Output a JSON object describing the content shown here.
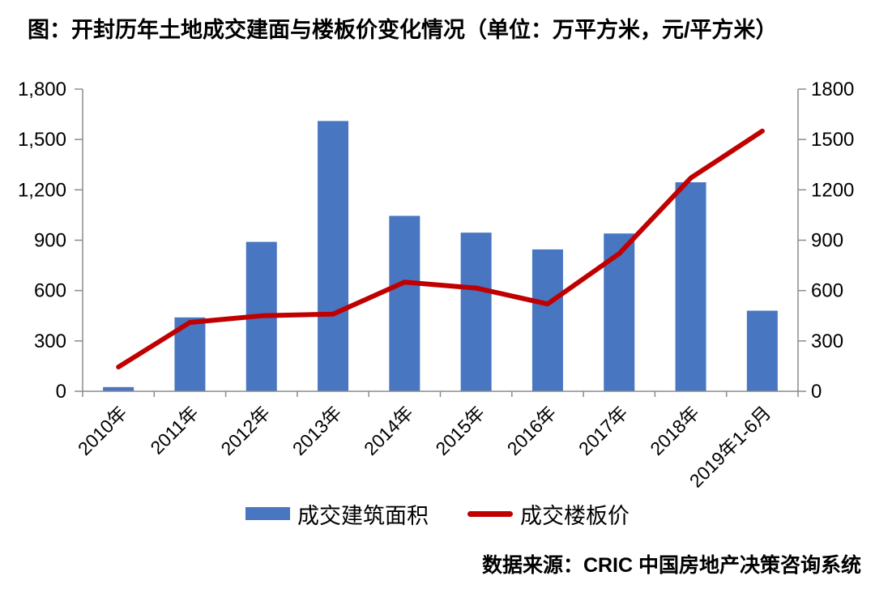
{
  "title": "图：开封历年土地成交建面与楼板价变化情况（单位：万平方米，元/平方米）",
  "source": "数据来源：CRIC 中国房地产决策咨询系统",
  "colors": {
    "bar": "#4876C1",
    "line": "#C00000",
    "axis": "#8C8C8C",
    "text": "#000000",
    "background": "#FFFFFF"
  },
  "legend": {
    "items": [
      {
        "label": "成交建筑面积",
        "swatch": "bar"
      },
      {
        "label": "成交楼板价",
        "swatch": "line"
      }
    ]
  },
  "chart_data": {
    "type": "bar+line",
    "title": "图：开封历年土地成交建面与楼板价变化情况",
    "units": {
      "bar": "万平方米",
      "line": "元/平方米"
    },
    "categories": [
      "2010年",
      "2011年",
      "2012年",
      "2013年",
      "2014年",
      "2015年",
      "2016年",
      "2017年",
      "2018年",
      "2019年1-6月"
    ],
    "series": [
      {
        "name": "成交建筑面积",
        "type": "bar",
        "axis": "left",
        "values": [
          25,
          440,
          890,
          1610,
          1045,
          945,
          845,
          940,
          1245,
          480
        ]
      },
      {
        "name": "成交楼板价",
        "type": "line",
        "axis": "right",
        "values": [
          145,
          410,
          450,
          460,
          650,
          615,
          520,
          820,
          1270,
          1550
        ]
      }
    ],
    "left_axis": {
      "min": 0,
      "max": 1800,
      "step": 300,
      "tick_labels": [
        "0",
        "300",
        "600",
        "900",
        "1,200",
        "1,500",
        "1,800"
      ]
    },
    "right_axis": {
      "min": 0,
      "max": 1800,
      "step": 300,
      "tick_labels": [
        "0",
        "300",
        "600",
        "900",
        "1200",
        "1500",
        "1800"
      ]
    },
    "grid": false,
    "legend_position": "bottom",
    "x_label_rotation": -45
  }
}
